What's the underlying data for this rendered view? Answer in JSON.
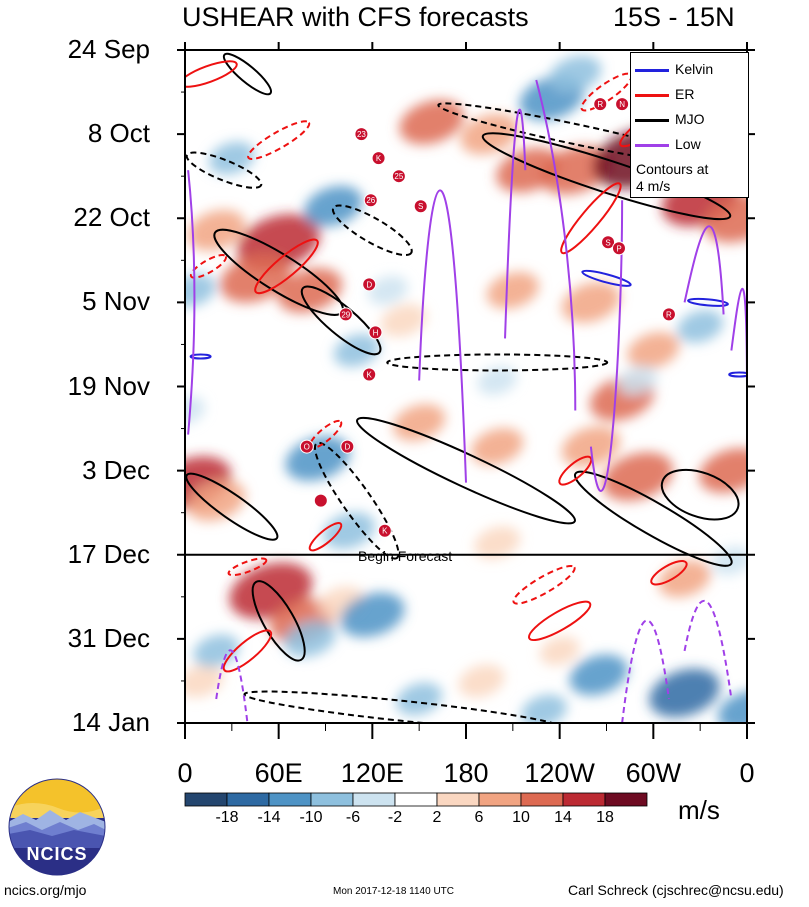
{
  "chart_data": {
    "type": "heatmap",
    "title": "USHEAR with CFS forecasts",
    "title_right": "15S - 15N",
    "x_tick_labels": [
      "0",
      "60E",
      "120E",
      "180",
      "120W",
      "60W",
      "0"
    ],
    "x_ticks_deg_east": [
      0,
      60,
      120,
      180,
      240,
      300,
      360
    ],
    "y_tick_labels": [
      "24 Sep",
      "8 Oct",
      "22 Oct",
      "5 Nov",
      "19 Nov",
      "3 Dec",
      "17 Dec",
      "31 Dec",
      "14 Jan"
    ],
    "y_ticks_day": [
      0,
      14,
      28,
      42,
      56,
      70,
      84,
      98,
      112
    ],
    "forecast_start_day": 84,
    "forecast_label": "Begin Forecast",
    "colorbar": {
      "units": "m/s",
      "tick_labels": [
        "-18",
        "-14",
        "-10",
        "-6",
        "-2",
        "2",
        "6",
        "10",
        "14",
        "18"
      ],
      "levels": [
        -18,
        -14,
        -10,
        -6,
        -2,
        2,
        6,
        10,
        14,
        18
      ],
      "colors": [
        "#24466f",
        "#2e6aa3",
        "#4e93c5",
        "#8ec0de",
        "#cde3f0",
        "#ffffff",
        "#fad7c1",
        "#f1a482",
        "#dd6a52",
        "#bc2a33",
        "#6e0b22"
      ]
    },
    "legend": {
      "entries": [
        {
          "name": "Kelvin",
          "color": "#2222dd"
        },
        {
          "name": "ER",
          "color": "#ee1111"
        },
        {
          "name": "MJO",
          "color": "#000000"
        },
        {
          "name": "Low",
          "color": "#a040e8"
        }
      ],
      "note_line1": "Contours at",
      "note_line2": "4 m/s"
    },
    "shear_blobs": [
      {
        "lon": 158,
        "day": 12,
        "v": 12
      },
      {
        "lon": 195,
        "day": 14,
        "v": 10
      },
      {
        "lon": 250,
        "day": 20,
        "v": 14
      },
      {
        "lon": 290,
        "day": 18,
        "v": 20
      },
      {
        "lon": 330,
        "day": 25,
        "v": 16
      },
      {
        "lon": 355,
        "day": 28,
        "v": 14
      },
      {
        "lon": 220,
        "day": 20,
        "v": 12
      },
      {
        "lon": 60,
        "day": 32,
        "v": 18
      },
      {
        "lon": 45,
        "day": 38,
        "v": 14
      },
      {
        "lon": 20,
        "day": 30,
        "v": 10
      },
      {
        "lon": 80,
        "day": 40,
        "v": 12
      },
      {
        "lon": 260,
        "day": 42,
        "v": 10
      },
      {
        "lon": 210,
        "day": 40,
        "v": 8
      },
      {
        "lon": 140,
        "day": 45,
        "v": 6
      },
      {
        "lon": 300,
        "day": 50,
        "v": 8
      },
      {
        "lon": 280,
        "day": 58,
        "v": 12
      },
      {
        "lon": 200,
        "day": 66,
        "v": 8
      },
      {
        "lon": 260,
        "day": 66,
        "v": 10
      },
      {
        "lon": 290,
        "day": 71,
        "v": 14
      },
      {
        "lon": 350,
        "day": 70,
        "v": 12
      },
      {
        "lon": 5,
        "day": 72,
        "v": 16
      },
      {
        "lon": 20,
        "day": 75,
        "v": 10
      },
      {
        "lon": 55,
        "day": 90,
        "v": 18
      },
      {
        "lon": 75,
        "day": 95,
        "v": 12
      },
      {
        "lon": 100,
        "day": 92,
        "v": 6
      },
      {
        "lon": 200,
        "day": 82,
        "v": 6
      },
      {
        "lon": 320,
        "day": 88,
        "v": 8
      },
      {
        "lon": 190,
        "day": 105,
        "v": 6
      },
      {
        "lon": 10,
        "day": 105,
        "v": 6
      },
      {
        "lon": 150,
        "day": 62,
        "v": 8
      },
      {
        "lon": 240,
        "day": 100,
        "v": 4
      },
      {
        "lon": 5,
        "day": 40,
        "v": -6
      },
      {
        "lon": 95,
        "day": 26,
        "v": -10
      },
      {
        "lon": 30,
        "day": 18,
        "v": -6
      },
      {
        "lon": 235,
        "day": 8,
        "v": -12
      },
      {
        "lon": 250,
        "day": 4,
        "v": -8
      },
      {
        "lon": 85,
        "day": 68,
        "v": -12
      },
      {
        "lon": 105,
        "day": 80,
        "v": -8
      },
      {
        "lon": 110,
        "day": 50,
        "v": -6
      },
      {
        "lon": 130,
        "day": 40,
        "v": -4
      },
      {
        "lon": 200,
        "day": 55,
        "v": -4
      },
      {
        "lon": 290,
        "day": 55,
        "v": -4
      },
      {
        "lon": 330,
        "day": 46,
        "v": -6
      },
      {
        "lon": 120,
        "day": 94,
        "v": -12
      },
      {
        "lon": 80,
        "day": 98,
        "v": -8
      },
      {
        "lon": 265,
        "day": 104,
        "v": -10
      },
      {
        "lon": 320,
        "day": 107,
        "v": -14
      },
      {
        "lon": 360,
        "day": 110,
        "v": -10
      },
      {
        "lon": 150,
        "day": 108,
        "v": -6
      },
      {
        "lon": 230,
        "day": 110,
        "v": -6
      },
      {
        "lon": 20,
        "day": 100,
        "v": -6
      },
      {
        "lon": 350,
        "day": 85,
        "v": -4
      },
      {
        "lon": 0,
        "day": 60,
        "v": -4
      }
    ],
    "storm_markers": [
      {
        "label": "23",
        "lon": 113,
        "day": 14
      },
      {
        "label": "K",
        "lon": 124,
        "day": 18
      },
      {
        "label": "25",
        "lon": 137,
        "day": 21
      },
      {
        "label": "26",
        "lon": 119,
        "day": 25
      },
      {
        "label": "S",
        "lon": 151,
        "day": 26
      },
      {
        "label": "R",
        "lon": 266,
        "day": 9
      },
      {
        "label": "N",
        "lon": 280,
        "day": 9
      },
      {
        "label": "S",
        "lon": 271,
        "day": 32
      },
      {
        "label": "P",
        "lon": 278,
        "day": 33
      },
      {
        "label": "D",
        "lon": 118,
        "day": 39
      },
      {
        "label": "29",
        "lon": 103,
        "day": 44
      },
      {
        "label": "H",
        "lon": 122,
        "day": 47
      },
      {
        "label": "R",
        "lon": 310,
        "day": 44
      },
      {
        "label": "K",
        "lon": 118,
        "day": 54
      },
      {
        "label": "O",
        "lon": 78,
        "day": 66
      },
      {
        "label": "D",
        "lon": 104,
        "day": 66
      },
      {
        "label": "",
        "lon": 87,
        "day": 75
      },
      {
        "label": "K",
        "lon": 128,
        "day": 80
      }
    ]
  },
  "footer": {
    "site": "ncics.org/mjo",
    "timestamp": "Mon 2017-12-18 1140 UTC",
    "author": "Carl Schreck (cjschrec@ncsu.edu)"
  },
  "logo": {
    "text": "NCICS"
  }
}
